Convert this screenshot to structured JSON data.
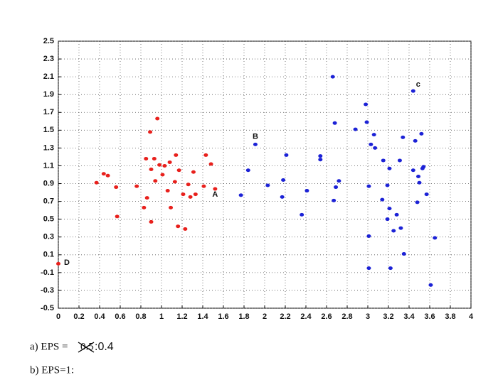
{
  "chart_data": {
    "type": "scatter",
    "series": [
      {
        "color": "#e8201c",
        "x": [
          0.37,
          0.44,
          0.48,
          0.56,
          0.57,
          0.76,
          0.83,
          0.86,
          0.85,
          0.89,
          0.9,
          0.9,
          0.93,
          0.94,
          0.96,
          0.98,
          1.01,
          1.03,
          1.06,
          1.08,
          1.09,
          1.13,
          1.14,
          1.16,
          1.17,
          1.21,
          1.23,
          1.26,
          1.28,
          1.31,
          1.33,
          1.41,
          1.43,
          1.48,
          1.52,
          0.0
        ],
        "y": [
          0.91,
          1.01,
          0.99,
          0.86,
          0.53,
          0.87,
          0.63,
          0.74,
          1.18,
          1.48,
          1.06,
          0.47,
          1.18,
          0.93,
          1.63,
          1.11,
          1.0,
          1.1,
          0.82,
          1.14,
          0.63,
          0.92,
          1.22,
          0.42,
          1.05,
          0.78,
          0.39,
          0.89,
          0.75,
          1.03,
          0.78,
          0.87,
          1.22,
          1.12,
          0.84,
          0.0
        ]
      },
      {
        "color": "#1c22d6",
        "x": [
          1.77,
          1.84,
          1.91,
          2.03,
          2.17,
          2.18,
          2.21,
          2.36,
          2.41,
          2.54,
          2.54,
          2.66,
          2.68,
          2.69,
          2.72,
          2.67,
          2.88,
          2.98,
          2.99,
          3.01,
          3.01,
          3.01,
          3.03,
          3.06,
          3.07,
          3.14,
          3.15,
          3.19,
          3.19,
          3.21,
          3.21,
          3.22,
          3.25,
          3.28,
          3.31,
          3.32,
          3.34,
          3.35,
          3.44,
          3.44,
          3.46,
          3.48,
          3.49,
          3.5,
          3.52,
          3.53,
          3.54,
          3.57,
          3.61,
          3.65
        ],
        "y": [
          0.77,
          1.05,
          1.34,
          0.88,
          0.75,
          0.94,
          1.22,
          0.55,
          0.82,
          1.21,
          1.17,
          2.1,
          1.58,
          0.86,
          0.93,
          0.71,
          1.51,
          1.79,
          1.59,
          0.87,
          0.31,
          -0.05,
          1.34,
          1.45,
          1.3,
          0.72,
          1.16,
          0.5,
          0.88,
          1.07,
          0.62,
          -0.05,
          0.37,
          0.55,
          1.16,
          0.4,
          1.42,
          0.11,
          1.94,
          1.05,
          1.38,
          0.69,
          0.98,
          0.91,
          1.46,
          1.07,
          1.09,
          0.78,
          -0.24,
          0.29
        ]
      }
    ],
    "annotations": [
      "A",
      "B",
      "c",
      "D"
    ],
    "xlim": [
      0,
      4
    ],
    "xticks": [
      0,
      0.2,
      0.4,
      0.6,
      0.8,
      1,
      1.2,
      1.4,
      1.6,
      1.8,
      2,
      2.2,
      2.4,
      2.6,
      2.8,
      3,
      3.2,
      3.4,
      3.6,
      3.8,
      4
    ],
    "ylim": [
      -0.5,
      2.5
    ],
    "yticks": [
      -0.5,
      -0.3,
      -0.1,
      0.1,
      0.3,
      0.5,
      0.7,
      0.9,
      1.1,
      1.3,
      1.5,
      1.7,
      1.9,
      2.1,
      2.3,
      2.5
    ],
    "grid": true
  },
  "captions": {
    "a": {
      "prefix": "a) EPS = ",
      "struck": "0.5",
      "correction": ":0.4"
    },
    "b": "b) EPS=1:"
  }
}
